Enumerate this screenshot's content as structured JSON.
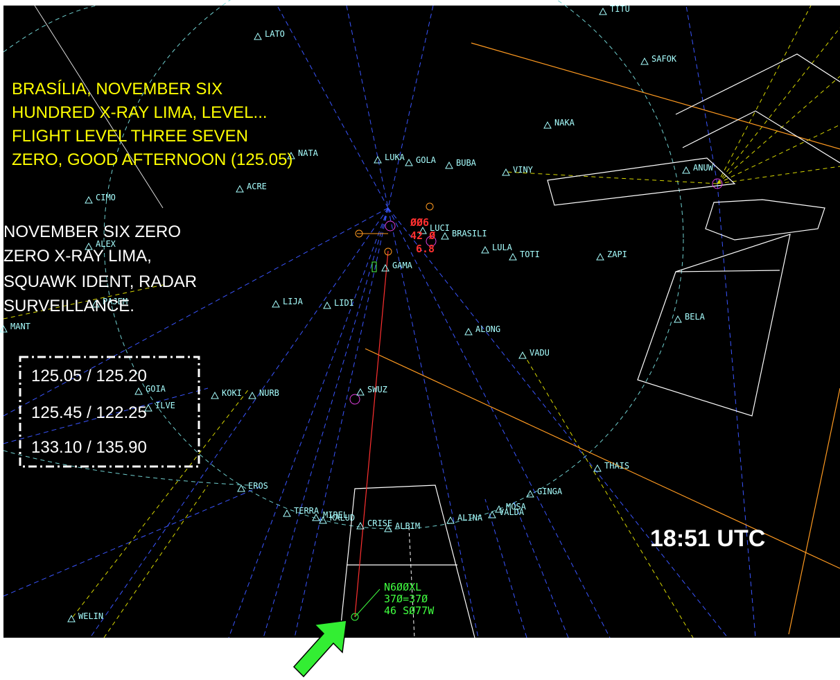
{
  "pilot_transmission": [
    "BRASÍLIA, NOVEMBER SIX",
    "HUNDRED X-RAY LIMA, LEVEL...",
    "FLIGHT LEVEL THREE SEVEN",
    "ZERO, GOOD AFTERNOON (125.05)"
  ],
  "controller_transmission": [
    "NOVEMBER SIX ZERO",
    "ZERO X-RAY LIMA,",
    "SQUAWK IDENT, RADAR",
    "SURVEILLANCE."
  ],
  "frequencies": [
    "125.05 / 125.20",
    "125.45 / 122.25",
    "133.10 / 135.90"
  ],
  "time": "18:51 UTC",
  "target_label": [
    "N6ØØXL",
    "37Ø=37Ø",
    "46 SØ77W"
  ],
  "other_track_label": [
    "ØØ6",
    "42 Ø",
    "6.8"
  ],
  "waypoints": [
    "TITU",
    "SAFOK",
    "LATO",
    "NAKA",
    "NATA",
    "LUKA",
    "GOLA",
    "BUBA",
    "VINY",
    "ANUW",
    "ACRE",
    "CIMO",
    "ALEX",
    "LUCI",
    "BRASILI",
    "LULA",
    "TOTI",
    "ZAPI",
    "GAMA",
    "PAJEM",
    "LIJA",
    "LIDI",
    "BELA",
    "ALONG",
    "VADU",
    "MANT",
    "GOIA",
    "ILVE",
    "KOKI",
    "NURB",
    "SWUZ",
    "THAIS",
    "EROS",
    "GINGA",
    "TERRA",
    "MIREL",
    "KALUD",
    "CRISE",
    "ALBIM",
    "ALINA",
    "VALDA",
    "MOSA",
    "WELIN"
  ]
}
